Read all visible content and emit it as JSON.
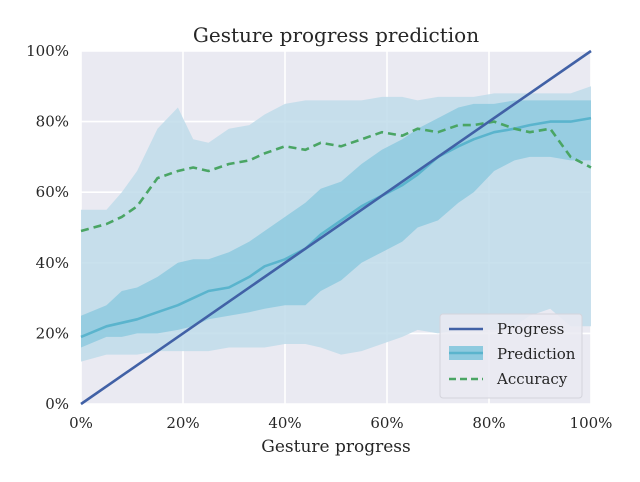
{
  "chart_data": {
    "type": "line",
    "title": "Gesture progress prediction",
    "xlabel": "Gesture progress",
    "ylabel": "",
    "xlim": [
      0,
      100
    ],
    "ylim": [
      0,
      100
    ],
    "x_ticks": [
      "0%",
      "20%",
      "40%",
      "60%",
      "80%",
      "100%"
    ],
    "y_ticks": [
      "0%",
      "20%",
      "40%",
      "60%",
      "80%",
      "100%"
    ],
    "grid": true,
    "legend_position": "lower-right",
    "x": [
      0,
      5,
      8,
      11,
      15,
      19,
      22,
      25,
      29,
      33,
      36,
      40,
      44,
      47,
      51,
      55,
      59,
      63,
      66,
      70,
      74,
      77,
      81,
      85,
      88,
      92,
      96,
      100
    ],
    "series": [
      {
        "name": "Progress",
        "style": "solid",
        "color": "#4161a6",
        "x": [
          0,
          100
        ],
        "values": [
          0,
          100
        ]
      },
      {
        "name": "Prediction",
        "style": "band",
        "color": "#5ab4cd",
        "values": [
          19,
          22,
          23,
          24,
          26,
          28,
          30,
          32,
          33,
          36,
          39,
          41,
          44,
          48,
          52,
          56,
          59,
          62,
          65,
          70,
          73,
          75,
          77,
          78,
          79,
          80,
          80,
          81
        ],
        "inner_lower": [
          16,
          19,
          19,
          20,
          20,
          21,
          22,
          24,
          25,
          26,
          27,
          28,
          28,
          32,
          35,
          40,
          43,
          46,
          50,
          52,
          57,
          60,
          66,
          69,
          70,
          70,
          69,
          69
        ],
        "inner_upper": [
          25,
          28,
          32,
          33,
          36,
          40,
          41,
          41,
          43,
          46,
          49,
          53,
          57,
          61,
          63,
          68,
          72,
          75,
          78,
          81,
          84,
          85,
          85,
          86,
          86,
          86,
          86,
          86
        ],
        "outer_lower": [
          12,
          14,
          14,
          14,
          15,
          15,
          15,
          15,
          16,
          16,
          16,
          17,
          17,
          16,
          14,
          15,
          17,
          19,
          21,
          20,
          21,
          21,
          21,
          22,
          25,
          27,
          22,
          22
        ],
        "outer_upper": [
          55,
          55,
          60,
          66,
          78,
          84,
          75,
          74,
          78,
          79,
          82,
          85,
          86,
          86,
          86,
          86,
          87,
          87,
          86,
          87,
          87,
          87,
          88,
          88,
          88,
          88,
          88,
          90
        ]
      },
      {
        "name": "Accuracy",
        "style": "dashed",
        "color": "#4aa564",
        "values": [
          49,
          51,
          53,
          56,
          64,
          66,
          67,
          66,
          68,
          69,
          71,
          73,
          72,
          74,
          73,
          75,
          77,
          76,
          78,
          77,
          79,
          79,
          80,
          78,
          77,
          78,
          70,
          67
        ]
      }
    ]
  },
  "colors": {
    "plot_background": "#eaeaf2",
    "grid": "#ffffff",
    "outer_band": "#c0dcea",
    "inner_band": "#8ecadf"
  }
}
